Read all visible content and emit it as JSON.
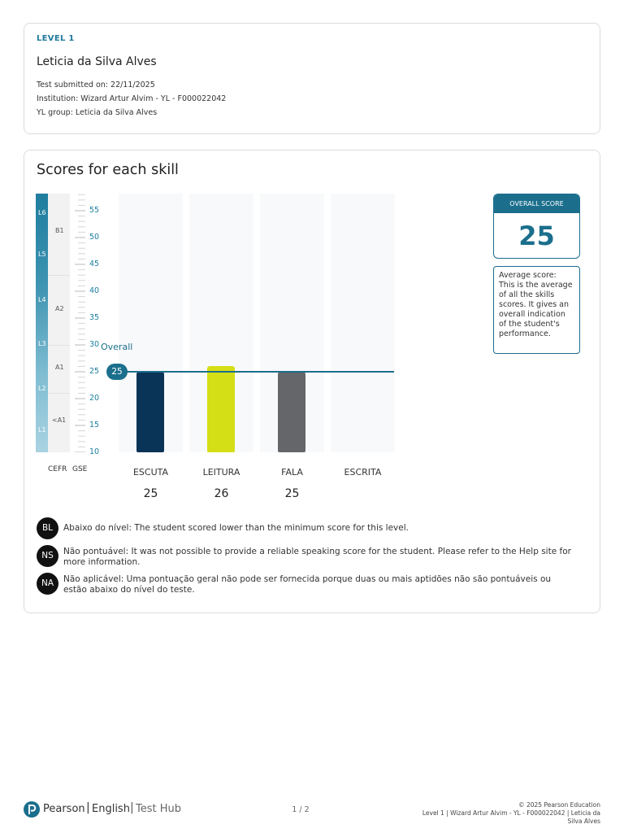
{
  "header": {
    "level": "LEVEL 1",
    "student_name": "Leticia da Silva Alves",
    "submitted": "Test submitted on: 22/11/2025",
    "institution": "Institution: Wizard Artur Alvim - YL - F000022042",
    "group": "YL group: Leticia da Silva Alves"
  },
  "scores": {
    "title": "Scores for each skill",
    "gse_ticks": [
      "55",
      "50",
      "45",
      "40",
      "35",
      "30",
      "25",
      "20",
      "15",
      "10"
    ],
    "levels": [
      "L6",
      "L5",
      "L4",
      "L3",
      "L2",
      "L1"
    ],
    "cefr": [
      "B1",
      "A2",
      "A1",
      "<A1"
    ],
    "axis_cefr": "CEFR",
    "axis_gse": "GSE",
    "overall_label": "Overall",
    "overall_value": "25",
    "overall_box_title": "OVERALL SCORE",
    "overall_box_value": "25",
    "overall_desc": "Average score: This is the average of all the skills scores. It gives an overall indication of the student's performance.",
    "skills": [
      {
        "name": "ESCUTA",
        "score": "25"
      },
      {
        "name": "LEITURA",
        "score": "26"
      },
      {
        "name": "FALA",
        "score": "25"
      },
      {
        "name": "ESCRITA",
        "score": ""
      }
    ]
  },
  "chart_data": {
    "type": "bar",
    "categories": [
      "ESCUTA",
      "LEITURA",
      "FALA",
      "ESCRITA"
    ],
    "values": [
      25,
      26,
      25,
      null
    ],
    "colors": [
      "#0a3358",
      "#d4df16",
      "#64666a",
      null
    ],
    "ylim": [
      10,
      58
    ],
    "overall": 25
  },
  "legend": [
    {
      "badge": "BL",
      "text": "Abaixo do nível: The student scored lower than the minimum score for this level."
    },
    {
      "badge": "NS",
      "text": "Não pontuável: It was not possible to provide a reliable speaking score for the student. Please refer to the Help site for more information."
    },
    {
      "badge": "NA",
      "text": "Não aplicável: Uma pontuação geral não pode ser fornecida porque duas ou mais aptidões não são pontuáveis ou estão abaixo do nível do teste."
    }
  ],
  "footer": {
    "brand_pearson": "Pearson",
    "brand_english": "English",
    "brand_hub": "Test Hub",
    "page": "1 / 2",
    "copyright": "© 2025 Pearson Education",
    "meta": "Level 1 | Wizard Artur Alvim - YL - F000022042 | Leticia da Silva Alves"
  }
}
